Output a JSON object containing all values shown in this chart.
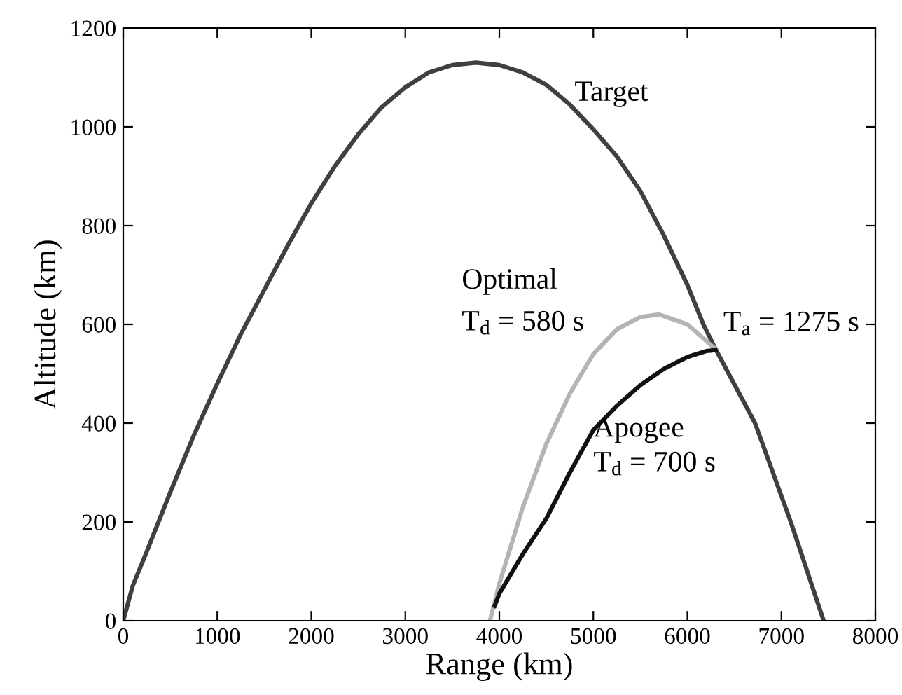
{
  "chart_data": {
    "type": "line",
    "xlabel": "Range (km)",
    "ylabel": "Altitude (km)",
    "xlim": [
      0,
      8000
    ],
    "ylim": [
      0,
      1200
    ],
    "xticks": [
      0,
      1000,
      2000,
      3000,
      4000,
      5000,
      6000,
      7000,
      8000
    ],
    "yticks": [
      0,
      200,
      400,
      600,
      800,
      1000,
      1200
    ],
    "grid": false,
    "legend": false,
    "marker": "none",
    "line_style": "solid",
    "series": [
      {
        "name": "Target",
        "color": "#404040",
        "x": [
          0,
          100,
          250,
          500,
          750,
          1000,
          1250,
          1500,
          1750,
          2000,
          2250,
          2500,
          2750,
          3000,
          3250,
          3500,
          3750,
          4000,
          4250,
          4500,
          4750,
          5000,
          5250,
          5500,
          5750,
          6000,
          6170,
          6300,
          6720,
          7100,
          7450
        ],
        "values": [
          0,
          70,
          140,
          260,
          375,
          480,
          580,
          670,
          760,
          845,
          920,
          985,
          1040,
          1080,
          1110,
          1125,
          1130,
          1125,
          1110,
          1085,
          1045,
          995,
          940,
          870,
          780,
          680,
          600,
          550,
          400,
          200,
          0
        ]
      },
      {
        "name": "Optimal",
        "color": "#b4b4b4",
        "x": [
          3900,
          4000,
          4250,
          4500,
          4750,
          5000,
          5250,
          5500,
          5700,
          6000,
          6300
        ],
        "values": [
          0,
          75,
          230,
          358,
          460,
          540,
          590,
          615,
          620,
          600,
          550
        ]
      },
      {
        "name": "Apogee",
        "color": "#111111",
        "x": [
          3950,
          4000,
          4250,
          4500,
          4750,
          5000,
          5250,
          5500,
          5750,
          6000,
          6200,
          6300
        ],
        "values": [
          30,
          55,
          135,
          207,
          300,
          386,
          435,
          477,
          510,
          534,
          546,
          548
        ]
      }
    ],
    "annotations": [
      "T$_{d}$ = 580 s",
      "T$_{d}$ = 700 s",
      {
        "text": "T$_{a}$ = 1275 s",
        "x": 6300,
        "y": 550
      }
    ]
  }
}
